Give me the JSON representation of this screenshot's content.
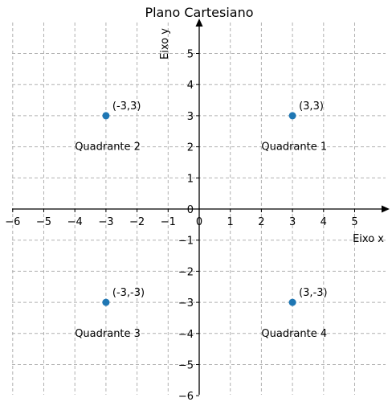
{
  "chart_data": {
    "type": "scatter",
    "title": "Plano Cartesiano",
    "xlabel": "Eixo x",
    "ylabel": "Eixo y",
    "xlim": [
      -6,
      6
    ],
    "ylim": [
      -6,
      6
    ],
    "grid": true,
    "x_ticks": [
      "−6",
      "−5",
      "−4",
      "−3",
      "−2",
      "−1",
      "0",
      "1",
      "2",
      "3",
      "4",
      "5"
    ],
    "y_ticks": [
      "−6",
      "−5",
      "−4",
      "−3",
      "−2",
      "−1",
      "0",
      "1",
      "2",
      "3",
      "4",
      "5"
    ],
    "series": [
      {
        "color": "#1f77b4",
        "points": [
          {
            "x": 3,
            "y": 3,
            "label": "(3,3)"
          },
          {
            "x": -3,
            "y": 3,
            "label": "(-3,3)"
          },
          {
            "x": -3,
            "y": -3,
            "label": "(-3,-3)"
          },
          {
            "x": 3,
            "y": -3,
            "label": "(3,-3)"
          }
        ]
      }
    ],
    "annotations": [
      {
        "text": "Quadrante 1",
        "x": 2,
        "y": 2
      },
      {
        "text": "Quadrante 2",
        "x": -4,
        "y": 2
      },
      {
        "text": "Quadrante 3",
        "x": -4,
        "y": -4
      },
      {
        "text": "Quadrante 4",
        "x": 2,
        "y": -4
      }
    ]
  }
}
